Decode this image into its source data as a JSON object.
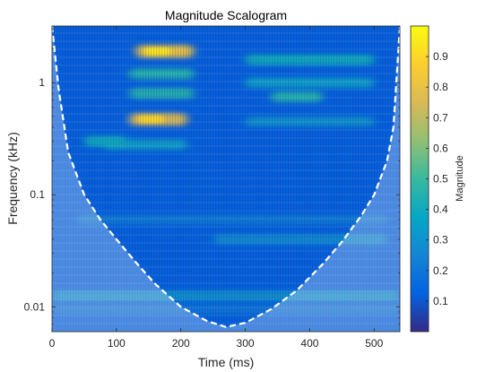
{
  "chart_data": {
    "type": "heatmap",
    "title": "Magnitude Scalogram",
    "xlabel": "Time (ms)",
    "ylabel": "Frequency (kHz)",
    "colorbar_label": "Magnitude",
    "x_scale": "linear",
    "y_scale": "log",
    "xlim": [
      0,
      540
    ],
    "ylim": [
      0.006,
      3.2
    ],
    "clim": [
      0,
      1
    ],
    "x_ticks": [
      0,
      100,
      200,
      300,
      400,
      500
    ],
    "x_tick_labels": [
      "0",
      "100",
      "200",
      "300",
      "400",
      "500"
    ],
    "y_ticks": [
      0.01,
      0.1,
      1
    ],
    "y_tick_labels": [
      "0.01",
      "0.1",
      "1"
    ],
    "colorbar_ticks": [
      0.1,
      0.2,
      0.3,
      0.4,
      0.5,
      0.6,
      0.7,
      0.8,
      0.9
    ],
    "colorbar_tick_labels": [
      "0.1",
      "0.2",
      "0.3",
      "0.4",
      "0.5",
      "0.6",
      "0.7",
      "0.8",
      "0.9"
    ],
    "colormap": "parula",
    "colormap_stops": [
      "#352a87",
      "#0363e1",
      "#1485d4",
      "#06a7c6",
      "#38b99e",
      "#92bf73",
      "#d9ba56",
      "#fcce2e",
      "#f9fb0e"
    ],
    "cone_of_influence": {
      "style": "dashed",
      "color": "#ffffff",
      "x": [
        0,
        10,
        25,
        50,
        75,
        100,
        130,
        160,
        200,
        240,
        270,
        300,
        340,
        380,
        420,
        450,
        480,
        500,
        520,
        530,
        540
      ],
      "y": [
        3.2,
        0.9,
        0.24,
        0.1,
        0.06,
        0.04,
        0.025,
        0.016,
        0.01,
        0.0075,
        0.0066,
        0.0072,
        0.0095,
        0.014,
        0.024,
        0.038,
        0.065,
        0.1,
        0.2,
        0.4,
        3.2
      ]
    },
    "features": [
      {
        "time": [
          130,
          220
        ],
        "freq": 1.9,
        "magnitude": 0.8
      },
      {
        "time": [
          120,
          210
        ],
        "freq": 0.47,
        "magnitude": 0.75
      },
      {
        "time": [
          120,
          220
        ],
        "freq": 1.2,
        "magnitude": 0.45
      },
      {
        "time": [
          120,
          220
        ],
        "freq": 0.8,
        "magnitude": 0.45
      },
      {
        "time": [
          300,
          500
        ],
        "freq": 1.6,
        "magnitude": 0.4
      },
      {
        "time": [
          300,
          500
        ],
        "freq": 1.0,
        "magnitude": 0.35
      },
      {
        "time": [
          340,
          420
        ],
        "freq": 0.75,
        "magnitude": 0.45
      },
      {
        "time": [
          300,
          500
        ],
        "freq": 0.45,
        "magnitude": 0.3
      },
      {
        "time": [
          80,
          210
        ],
        "freq": 0.28,
        "magnitude": 0.35
      },
      {
        "time": [
          50,
          115
        ],
        "freq": 0.3,
        "magnitude": 0.4
      },
      {
        "time": [
          40,
          520
        ],
        "freq": 0.06,
        "magnitude": 0.22
      },
      {
        "time": [
          250,
          520
        ],
        "freq": 0.04,
        "magnitude": 0.28
      },
      {
        "time": [
          0,
          540
        ],
        "freq": 0.0125,
        "magnitude": 0.3
      },
      {
        "time": [
          0,
          540
        ],
        "freq": 0.0095,
        "magnitude": 0.2
      }
    ]
  }
}
